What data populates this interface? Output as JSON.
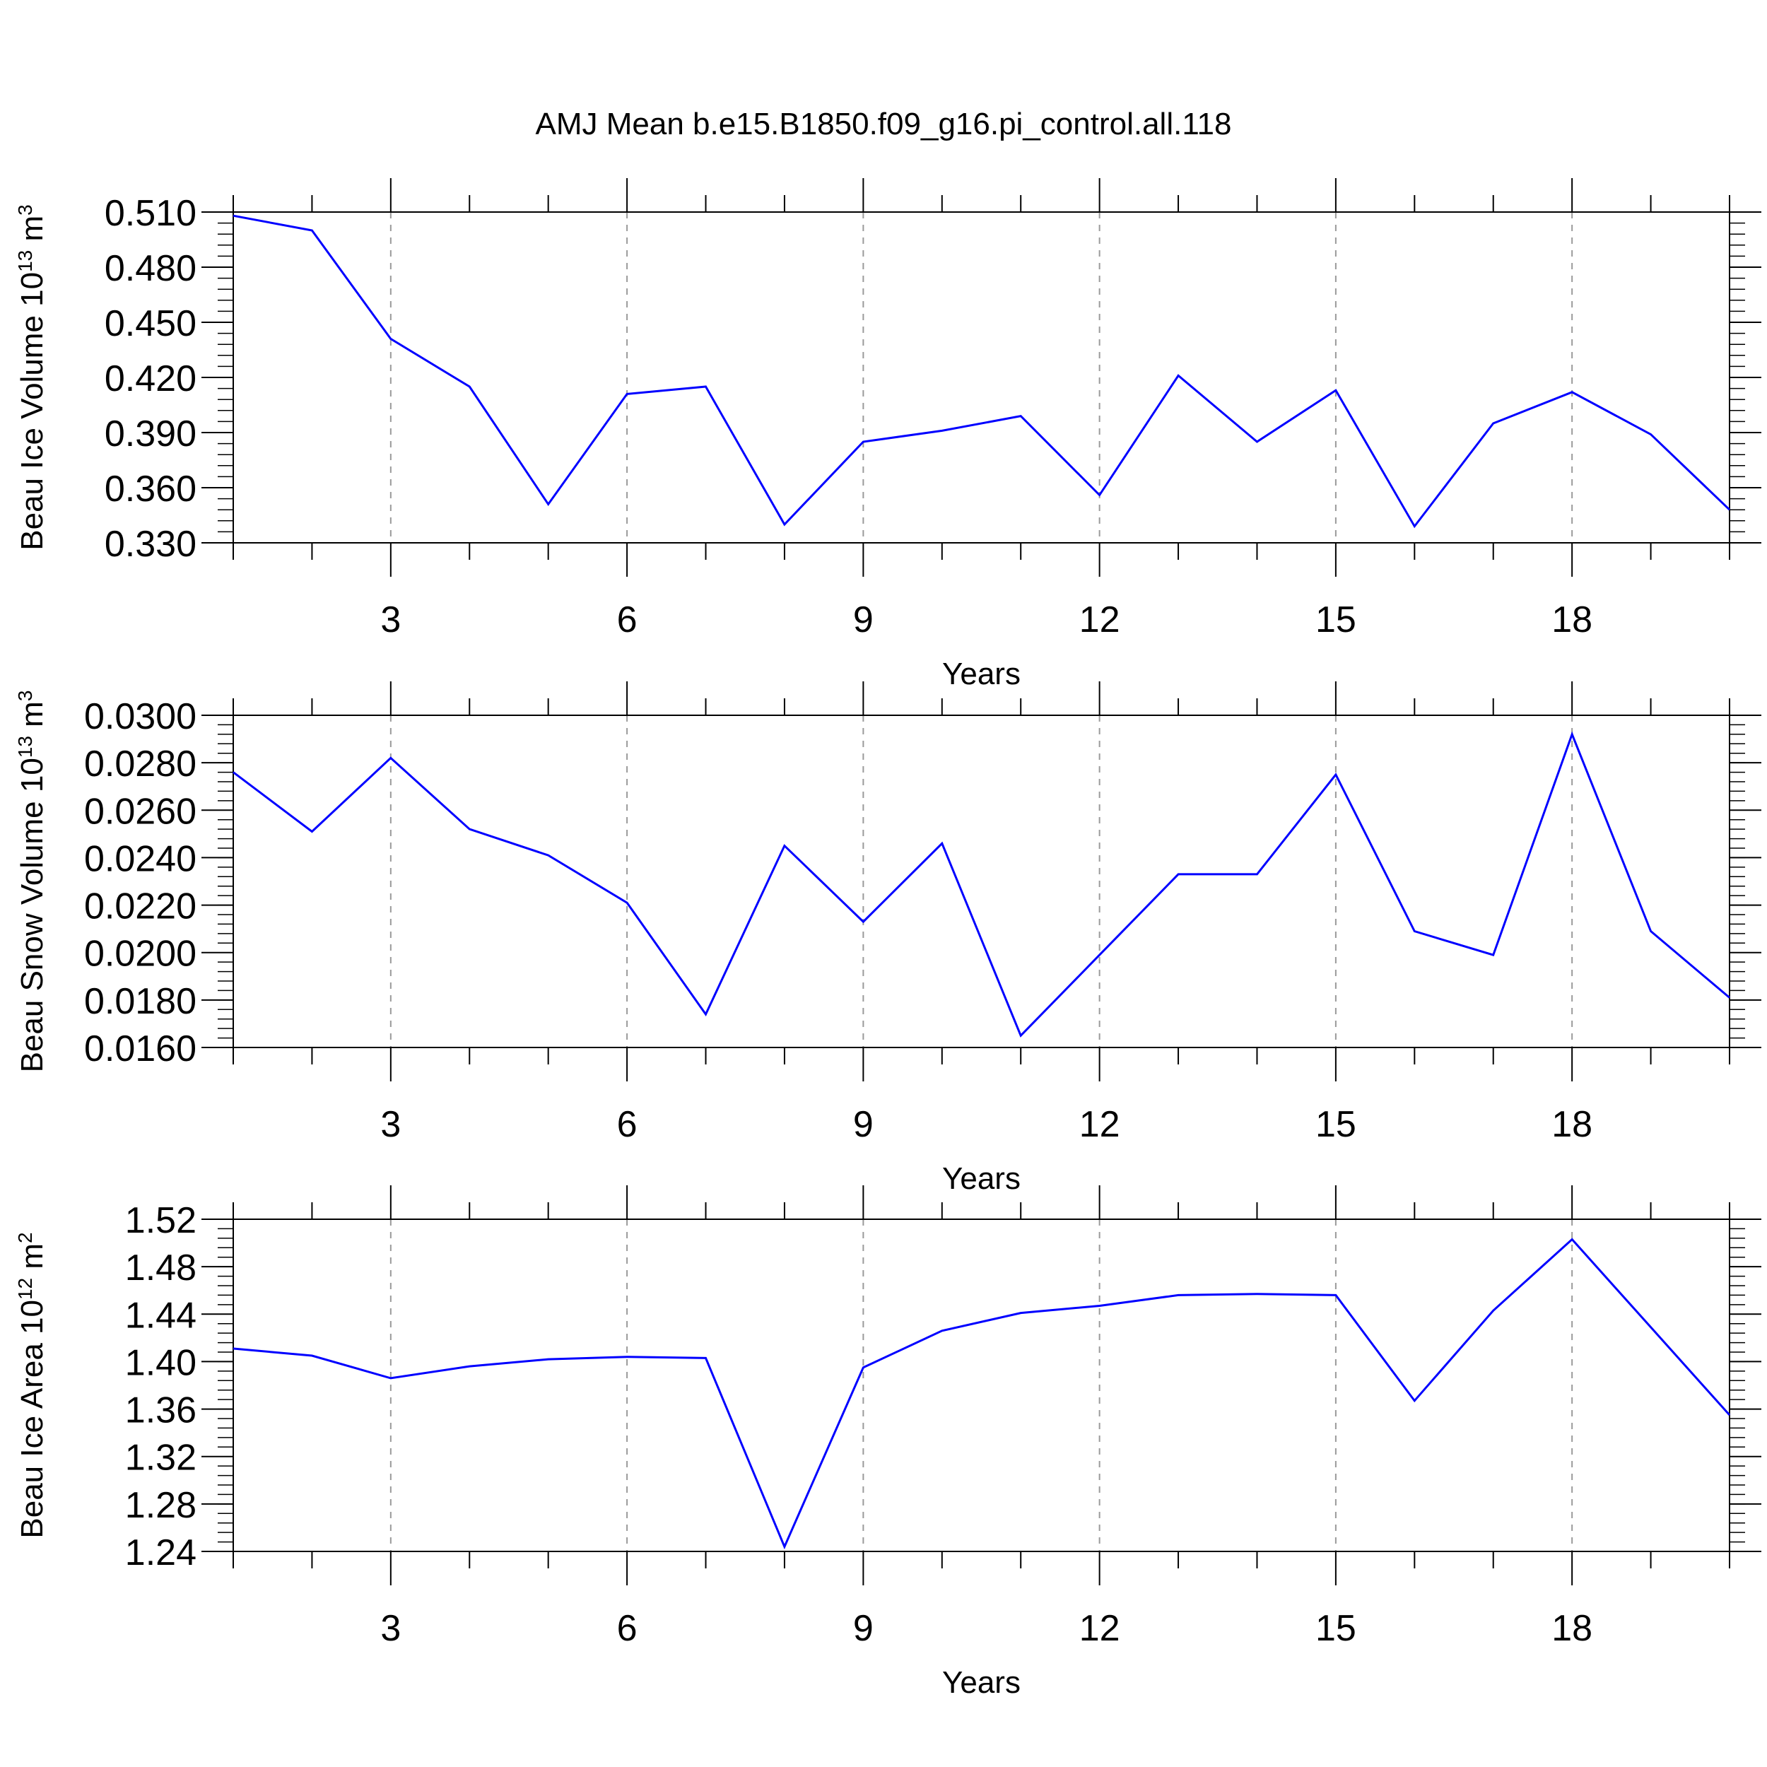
{
  "chart_data": {
    "title": "AMJ Mean b.e15.B1850.f09_g16.pi_control.all.118",
    "panels": [
      {
        "type": "line",
        "ylabel": {
          "text": "Beau Ice Volume 10",
          "exp": "13",
          "unit": " m",
          "unit_exp": "3"
        },
        "xlabel": "Years",
        "xlim": [
          1,
          20
        ],
        "ylim": [
          0.33,
          0.51
        ],
        "x_ticks": [
          3,
          6,
          9,
          12,
          15,
          18
        ],
        "y_ticks": [
          "0.330",
          "0.360",
          "0.390",
          "0.420",
          "0.450",
          "0.480",
          "0.510"
        ],
        "y_tick_values": [
          0.33,
          0.36,
          0.39,
          0.42,
          0.45,
          0.48,
          0.51
        ],
        "y_minor_step": 0.006,
        "color": "#0000ff",
        "x": [
          1,
          2,
          3,
          4,
          5,
          6,
          7,
          8,
          9,
          10,
          11,
          12,
          13,
          14,
          15,
          16,
          17,
          18,
          19,
          20
        ],
        "values": [
          0.508,
          0.5,
          0.441,
          0.415,
          0.351,
          0.411,
          0.415,
          0.34,
          0.385,
          0.391,
          0.399,
          0.356,
          0.421,
          0.385,
          0.413,
          0.339,
          0.395,
          0.412,
          0.389,
          0.348
        ]
      },
      {
        "type": "line",
        "ylabel": {
          "text": "Beau Snow Volume 10",
          "exp": "13",
          "unit": " m",
          "unit_exp": "3"
        },
        "xlabel": "Years",
        "xlim": [
          1,
          20
        ],
        "ylim": [
          0.016,
          0.03
        ],
        "x_ticks": [
          3,
          6,
          9,
          12,
          15,
          18
        ],
        "y_ticks": [
          "0.0160",
          "0.0180",
          "0.0200",
          "0.0220",
          "0.0240",
          "0.0260",
          "0.0280",
          "0.0300"
        ],
        "y_tick_values": [
          0.016,
          0.018,
          0.02,
          0.022,
          0.024,
          0.026,
          0.028,
          0.03
        ],
        "y_minor_step": 0.0004,
        "color": "#0000ff",
        "x": [
          1,
          2,
          3,
          4,
          5,
          6,
          7,
          8,
          9,
          10,
          11,
          12,
          13,
          14,
          15,
          16,
          17,
          18,
          19,
          20
        ],
        "values": [
          0.0276,
          0.0251,
          0.0282,
          0.0252,
          0.0241,
          0.0221,
          0.0174,
          0.0245,
          0.0213,
          0.0246,
          0.0165,
          0.0199,
          0.0233,
          0.0233,
          0.0275,
          0.0209,
          0.0199,
          0.0292,
          0.0209,
          0.0181
        ]
      },
      {
        "type": "line",
        "ylabel": {
          "text": "Beau Ice Area 10",
          "exp": "12",
          "unit": " m",
          "unit_exp": "2"
        },
        "xlabel": "Years",
        "xlim": [
          1,
          20
        ],
        "ylim": [
          1.24,
          1.52
        ],
        "x_ticks": [
          3,
          6,
          9,
          12,
          15,
          18
        ],
        "y_ticks": [
          "1.24",
          "1.28",
          "1.32",
          "1.36",
          "1.40",
          "1.44",
          "1.48",
          "1.52"
        ],
        "y_tick_values": [
          1.24,
          1.28,
          1.32,
          1.36,
          1.4,
          1.44,
          1.48,
          1.52
        ],
        "y_minor_step": 0.008,
        "color": "#0000ff",
        "x": [
          1,
          2,
          3,
          4,
          5,
          6,
          7,
          8,
          9,
          10,
          11,
          12,
          13,
          14,
          15,
          16,
          17,
          18,
          19,
          20
        ],
        "values": [
          1.411,
          1.405,
          1.386,
          1.396,
          1.402,
          1.404,
          1.403,
          1.244,
          1.395,
          1.426,
          1.441,
          1.447,
          1.456,
          1.457,
          1.456,
          1.367,
          1.443,
          1.503,
          1.429,
          1.355
        ]
      }
    ]
  }
}
